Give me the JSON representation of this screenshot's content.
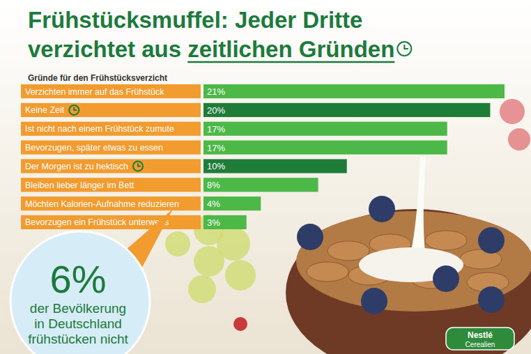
{
  "chart_data": {
    "type": "bar",
    "orientation": "horizontal",
    "title": [
      "Frühstücksmuffel: Jeder Dritte",
      "verzichtet aus zeitlichen Gründen"
    ],
    "subtitle": "Gründe für den Frühstücksverzicht",
    "categories": [
      "Verzichten immer auf das Frühstück",
      "Keine Zeit",
      "Ist nicht nach einem Frühstück zumute",
      "Bevorzugen, später etwas zu essen",
      "Der Morgen ist zu hektisch",
      "Bleiben lieber länger im Bett",
      "Möchten Kalorien-Aufnahme reduzieren",
      "Bevorzugen ein Frühstück unterwegs"
    ],
    "values": [
      21,
      20,
      17,
      17,
      10,
      8,
      4,
      3
    ],
    "value_labels": [
      "21%",
      "20%",
      "17%",
      "17%",
      "10%",
      "8%",
      "4%",
      "3%"
    ],
    "color": "#4cb848",
    "colors": [
      "#4cb848",
      "#1f7d3a",
      "#4cb848",
      "#4cb848",
      "#1f7d3a",
      "#4cb848",
      "#4cb848",
      "#4cb848"
    ],
    "xlim": [
      0,
      21
    ],
    "data_labels": true,
    "tick_labels": false,
    "grid": false,
    "annotations": [
      {
        "value": 6,
        "label": "6%",
        "text": [
          "der Bevölkerung",
          "in Deutschland",
          "frühstücken nicht"
        ]
      },
      {
        "text": [
          "Nestlé",
          "Cerealien"
        ]
      }
    ]
  }
}
